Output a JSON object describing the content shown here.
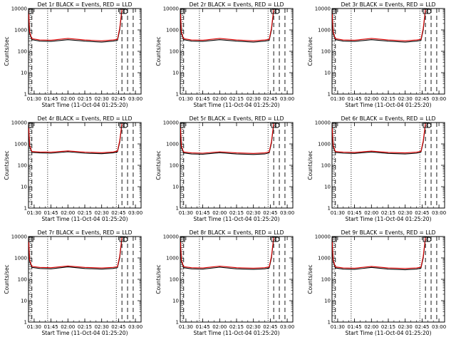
{
  "figure": {
    "xlabel": "Start Time (11-Oct-04 01:25:20)",
    "ylabel": "Counts/sec",
    "colors": {
      "events": "#000000",
      "lld": "#dd0000",
      "axes": "#000000",
      "background": "#ffffff"
    }
  },
  "chart_data": [
    {
      "type": "line",
      "title": "Det 1r BLACK = Events, RED = LLD",
      "xlabel": "Start Time (11-Oct-04 01:25:20)",
      "ylabel": "Counts/sec",
      "y_scale": "log",
      "ylim": [
        1,
        10000
      ],
      "y_ticks": [
        "1",
        "10",
        "100",
        "1000",
        "10000"
      ],
      "xlim": [
        "01:25",
        "03:05"
      ],
      "x_ticks": [
        "01:30",
        "01:45",
        "02:00",
        "02:15",
        "02:30",
        "02:45",
        "03:00"
      ],
      "dotted_lines_x": [
        "01:27",
        "01:42",
        "02:43"
      ],
      "dashed_lines_x": [
        "01:28",
        "02:48",
        "02:53",
        "02:58"
      ],
      "box_markers_x": [
        "01:27",
        "02:48"
      ],
      "circle_markers_x": [
        "02:51"
      ],
      "series": [
        {
          "name": "Events",
          "x": [
            "01:25",
            "01:26",
            "01:28",
            "01:35",
            "01:45",
            "02:00",
            "02:15",
            "02:30",
            "02:40",
            "02:44",
            "02:46",
            "02:48"
          ],
          "y": [
            8000,
            700,
            350,
            300,
            290,
            350,
            300,
            270,
            300,
            320,
            1000,
            8000
          ]
        },
        {
          "name": "LLD",
          "x": [
            "01:25",
            "01:26",
            "01:28",
            "01:35",
            "01:45",
            "02:00",
            "02:15",
            "02:30",
            "02:40",
            "02:44",
            "02:46",
            "02:48"
          ],
          "y": [
            9000,
            800,
            390,
            340,
            330,
            400,
            340,
            310,
            340,
            360,
            1200,
            9000
          ]
        }
      ]
    },
    {
      "type": "line",
      "title": "Det 2r BLACK = Events, RED = LLD",
      "xlabel": "Start Time (11-Oct-04 01:25:20)",
      "ylabel": "Counts/sec",
      "y_scale": "log",
      "ylim": [
        1,
        10000
      ],
      "y_ticks": [
        "1",
        "10",
        "100",
        "1000",
        "10000"
      ],
      "xlim": [
        "01:25",
        "03:05"
      ],
      "x_ticks": [
        "01:30",
        "01:45",
        "02:00",
        "02:15",
        "02:30",
        "02:45",
        "03:00"
      ],
      "dotted_lines_x": [
        "01:27",
        "01:42",
        "02:43"
      ],
      "dashed_lines_x": [
        "01:28",
        "02:48",
        "02:53",
        "02:58"
      ],
      "box_markers_x": [
        "01:27",
        "02:48"
      ],
      "circle_markers_x": [
        "02:51"
      ],
      "series": [
        {
          "name": "Events",
          "x": [
            "01:25",
            "01:26",
            "01:28",
            "01:35",
            "01:45",
            "02:00",
            "02:15",
            "02:30",
            "02:40",
            "02:44",
            "02:46",
            "02:48"
          ],
          "y": [
            8000,
            700,
            350,
            300,
            290,
            350,
            300,
            270,
            300,
            320,
            1000,
            8000
          ]
        },
        {
          "name": "LLD",
          "x": [
            "01:25",
            "01:26",
            "01:28",
            "01:35",
            "01:45",
            "02:00",
            "02:15",
            "02:30",
            "02:40",
            "02:44",
            "02:46",
            "02:48"
          ],
          "y": [
            9000,
            800,
            390,
            340,
            330,
            400,
            340,
            310,
            340,
            360,
            1200,
            9000
          ]
        }
      ]
    },
    {
      "type": "line",
      "title": "Det 3r BLACK = Events, RED = LLD",
      "xlabel": "Start Time (11-Oct-04 01:25:20)",
      "ylabel": "Counts/sec",
      "y_scale": "log",
      "ylim": [
        1,
        10000
      ],
      "y_ticks": [
        "1",
        "10",
        "100",
        "1000",
        "10000"
      ],
      "xlim": [
        "01:25",
        "03:05"
      ],
      "x_ticks": [
        "01:30",
        "01:45",
        "02:00",
        "02:15",
        "02:30",
        "02:45",
        "03:00"
      ],
      "dotted_lines_x": [
        "01:27",
        "01:42",
        "02:43"
      ],
      "dashed_lines_x": [
        "01:28",
        "02:48",
        "02:53",
        "02:58"
      ],
      "box_markers_x": [
        "01:27",
        "02:48"
      ],
      "circle_markers_x": [
        "02:51"
      ],
      "series": [
        {
          "name": "Events",
          "x": [
            "01:25",
            "01:26",
            "01:28",
            "01:35",
            "01:45",
            "02:00",
            "02:15",
            "02:30",
            "02:40",
            "02:44",
            "02:46",
            "02:48"
          ],
          "y": [
            8000,
            700,
            350,
            300,
            290,
            350,
            300,
            270,
            300,
            320,
            1000,
            8000
          ]
        },
        {
          "name": "LLD",
          "x": [
            "01:25",
            "01:26",
            "01:28",
            "01:35",
            "01:45",
            "02:00",
            "02:15",
            "02:30",
            "02:40",
            "02:44",
            "02:46",
            "02:48"
          ],
          "y": [
            9000,
            800,
            390,
            340,
            330,
            400,
            340,
            310,
            340,
            360,
            1200,
            9000
          ]
        }
      ]
    },
    {
      "type": "line",
      "title": "Det 4r BLACK = Events, RED = LLD",
      "xlabel": "Start Time (11-Oct-04 01:25:20)",
      "ylabel": "Counts/sec",
      "y_scale": "log",
      "ylim": [
        1,
        10000
      ],
      "y_ticks": [
        "1",
        "10",
        "100",
        "1000",
        "10000"
      ],
      "xlim": [
        "01:25",
        "03:05"
      ],
      "x_ticks": [
        "01:30",
        "01:45",
        "02:00",
        "02:15",
        "02:30",
        "02:45",
        "03:00"
      ],
      "dotted_lines_x": [
        "01:27",
        "01:42",
        "02:43"
      ],
      "dashed_lines_x": [
        "01:28",
        "02:48",
        "02:53",
        "02:58"
      ],
      "box_markers_x": [
        "01:27",
        "02:48"
      ],
      "circle_markers_x": [
        "02:51"
      ],
      "series": [
        {
          "name": "Events",
          "x": [
            "01:25",
            "01:26",
            "01:28",
            "01:35",
            "01:45",
            "02:00",
            "02:15",
            "02:30",
            "02:40",
            "02:44",
            "02:46",
            "02:48"
          ],
          "y": [
            8000,
            750,
            400,
            380,
            370,
            430,
            370,
            350,
            380,
            420,
            1200,
            8000
          ]
        },
        {
          "name": "LLD",
          "x": [
            "01:25",
            "01:26",
            "01:28",
            "01:35",
            "01:45",
            "02:00",
            "02:15",
            "02:30",
            "02:40",
            "02:44",
            "02:46",
            "02:48"
          ],
          "y": [
            9000,
            850,
            440,
            420,
            410,
            470,
            410,
            390,
            420,
            460,
            1400,
            9000
          ]
        }
      ]
    },
    {
      "type": "line",
      "title": "Det 5r BLACK = Events, RED = LLD",
      "xlabel": "Start Time (11-Oct-04 01:25:20)",
      "ylabel": "Counts/sec",
      "y_scale": "log",
      "ylim": [
        1,
        10000
      ],
      "y_ticks": [
        "1",
        "10",
        "100",
        "1000",
        "10000"
      ],
      "xlim": [
        "01:25",
        "03:05"
      ],
      "x_ticks": [
        "01:30",
        "01:45",
        "02:00",
        "02:15",
        "02:30",
        "02:45",
        "03:00"
      ],
      "dotted_lines_x": [
        "01:27",
        "01:42",
        "02:43"
      ],
      "dashed_lines_x": [
        "01:28",
        "02:48",
        "02:53",
        "02:58"
      ],
      "box_markers_x": [
        "01:27",
        "02:48"
      ],
      "circle_markers_x": [
        "02:51"
      ],
      "series": [
        {
          "name": "Events",
          "x": [
            "01:25",
            "01:26",
            "01:28",
            "01:35",
            "01:45",
            "02:00",
            "02:15",
            "02:30",
            "02:40",
            "02:44",
            "02:46",
            "02:48"
          ],
          "y": [
            8000,
            700,
            380,
            340,
            330,
            390,
            340,
            320,
            340,
            380,
            1100,
            8000
          ]
        },
        {
          "name": "LLD",
          "x": [
            "01:25",
            "01:26",
            "01:28",
            "01:35",
            "01:45",
            "02:00",
            "02:15",
            "02:30",
            "02:40",
            "02:44",
            "02:46",
            "02:48"
          ],
          "y": [
            9000,
            800,
            420,
            380,
            370,
            430,
            380,
            360,
            380,
            420,
            1300,
            9000
          ]
        }
      ]
    },
    {
      "type": "line",
      "title": "Det 6r BLACK = Events, RED = LLD",
      "xlabel": "Start Time (11-Oct-04 01:25:20)",
      "ylabel": "Counts/sec",
      "y_scale": "log",
      "ylim": [
        1,
        10000
      ],
      "y_ticks": [
        "1",
        "10",
        "100",
        "1000",
        "10000"
      ],
      "xlim": [
        "01:25",
        "03:05"
      ],
      "x_ticks": [
        "01:30",
        "01:45",
        "02:00",
        "02:15",
        "02:30",
        "02:45",
        "03:00"
      ],
      "dotted_lines_x": [
        "01:27",
        "01:42",
        "02:43"
      ],
      "dashed_lines_x": [
        "01:28",
        "02:48",
        "02:53",
        "02:58"
      ],
      "box_markers_x": [
        "01:27",
        "02:48"
      ],
      "circle_markers_x": [
        "02:51"
      ],
      "series": [
        {
          "name": "Events",
          "x": [
            "01:25",
            "01:26",
            "01:28",
            "01:35",
            "01:45",
            "02:00",
            "02:15",
            "02:30",
            "02:40",
            "02:44",
            "02:46",
            "02:48"
          ],
          "y": [
            8000,
            750,
            400,
            370,
            360,
            420,
            360,
            340,
            370,
            410,
            1200,
            8000
          ]
        },
        {
          "name": "LLD",
          "x": [
            "01:25",
            "01:26",
            "01:28",
            "01:35",
            "01:45",
            "02:00",
            "02:15",
            "02:30",
            "02:40",
            "02:44",
            "02:46",
            "02:48"
          ],
          "y": [
            9000,
            850,
            440,
            410,
            400,
            460,
            400,
            380,
            410,
            450,
            1400,
            9000
          ]
        }
      ]
    },
    {
      "type": "line",
      "title": "Det 7r BLACK = Events, RED = LLD",
      "xlabel": "Start Time (11-Oct-04 01:25:20)",
      "ylabel": "Counts/sec",
      "y_scale": "log",
      "ylim": [
        1,
        10000
      ],
      "y_ticks": [
        "1",
        "10",
        "100",
        "1000",
        "10000"
      ],
      "xlim": [
        "01:25",
        "03:05"
      ],
      "x_ticks": [
        "01:30",
        "01:45",
        "02:00",
        "02:15",
        "02:30",
        "02:45",
        "03:00"
      ],
      "dotted_lines_x": [
        "01:27",
        "01:42",
        "02:43"
      ],
      "dashed_lines_x": [
        "01:28",
        "02:48",
        "02:53",
        "02:58"
      ],
      "box_markers_x": [
        "01:27",
        "02:48"
      ],
      "circle_markers_x": [
        "02:51"
      ],
      "series": [
        {
          "name": "Events",
          "x": [
            "01:25",
            "01:26",
            "01:28",
            "01:35",
            "01:45",
            "02:00",
            "02:15",
            "02:30",
            "02:40",
            "02:44",
            "02:46",
            "02:48"
          ],
          "y": [
            8000,
            700,
            360,
            320,
            310,
            380,
            320,
            300,
            320,
            350,
            1000,
            8000
          ]
        },
        {
          "name": "LLD",
          "x": [
            "01:25",
            "01:26",
            "01:28",
            "01:35",
            "01:45",
            "02:00",
            "02:15",
            "02:30",
            "02:40",
            "02:44",
            "02:46",
            "02:48"
          ],
          "y": [
            9000,
            800,
            400,
            360,
            350,
            420,
            360,
            340,
            360,
            390,
            1200,
            9000
          ]
        }
      ]
    },
    {
      "type": "line",
      "title": "Det 8r BLACK = Events, RED = LLD",
      "xlabel": "Start Time (11-Oct-04 01:25:20)",
      "ylabel": "Counts/sec",
      "y_scale": "log",
      "ylim": [
        1,
        10000
      ],
      "y_ticks": [
        "1",
        "10",
        "100",
        "1000",
        "10000"
      ],
      "xlim": [
        "01:25",
        "03:05"
      ],
      "x_ticks": [
        "01:30",
        "01:45",
        "02:00",
        "02:15",
        "02:30",
        "02:45",
        "03:00"
      ],
      "dotted_lines_x": [
        "01:27",
        "01:42",
        "02:43"
      ],
      "dashed_lines_x": [
        "01:28",
        "02:48",
        "02:53",
        "02:58"
      ],
      "box_markers_x": [
        "01:27",
        "02:48"
      ],
      "circle_markers_x": [
        "02:51"
      ],
      "series": [
        {
          "name": "Events",
          "x": [
            "01:25",
            "01:26",
            "01:28",
            "01:35",
            "01:45",
            "02:00",
            "02:15",
            "02:30",
            "02:40",
            "02:44",
            "02:46",
            "02:48"
          ],
          "y": [
            8000,
            700,
            350,
            310,
            300,
            370,
            310,
            290,
            310,
            340,
            1000,
            8000
          ]
        },
        {
          "name": "LLD",
          "x": [
            "01:25",
            "01:26",
            "01:28",
            "01:35",
            "01:45",
            "02:00",
            "02:15",
            "02:30",
            "02:40",
            "02:44",
            "02:46",
            "02:48"
          ],
          "y": [
            9000,
            800,
            390,
            350,
            340,
            410,
            350,
            330,
            350,
            380,
            1200,
            9000
          ]
        }
      ]
    },
    {
      "type": "line",
      "title": "Det 9r BLACK = Events, RED = LLD",
      "xlabel": "Start Time (11-Oct-04 01:25:20)",
      "ylabel": "Counts/sec",
      "y_scale": "log",
      "ylim": [
        1,
        10000
      ],
      "y_ticks": [
        "1",
        "10",
        "100",
        "1000",
        "10000"
      ],
      "xlim": [
        "01:25",
        "03:05"
      ],
      "x_ticks": [
        "01:30",
        "01:45",
        "02:00",
        "02:15",
        "02:30",
        "02:45",
        "03:00"
      ],
      "dotted_lines_x": [
        "01:27",
        "01:42",
        "02:43"
      ],
      "dashed_lines_x": [
        "01:28",
        "02:48",
        "02:53",
        "02:58"
      ],
      "box_markers_x": [
        "01:27",
        "02:48"
      ],
      "circle_markers_x": [
        "02:51"
      ],
      "series": [
        {
          "name": "Events",
          "x": [
            "01:25",
            "01:26",
            "01:28",
            "01:35",
            "01:45",
            "02:00",
            "02:15",
            "02:30",
            "02:40",
            "02:44",
            "02:46",
            "02:48"
          ],
          "y": [
            8000,
            700,
            340,
            300,
            290,
            360,
            300,
            280,
            300,
            330,
            1000,
            8000
          ]
        },
        {
          "name": "LLD",
          "x": [
            "01:25",
            "01:26",
            "01:28",
            "01:35",
            "01:45",
            "02:00",
            "02:15",
            "02:30",
            "02:40",
            "02:44",
            "02:46",
            "02:48"
          ],
          "y": [
            9000,
            800,
            380,
            340,
            330,
            400,
            340,
            320,
            340,
            370,
            1200,
            9000
          ]
        }
      ]
    }
  ]
}
